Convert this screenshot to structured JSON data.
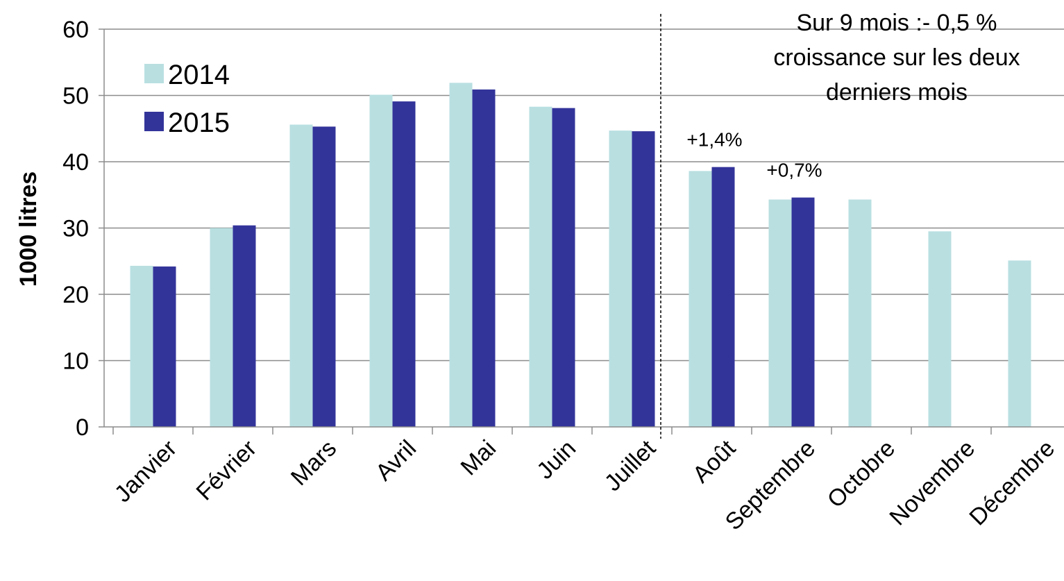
{
  "chart_data": {
    "type": "bar",
    "categories": [
      "Janvier",
      "Février",
      "Mars",
      "Avril",
      "Mai",
      "Juin",
      "Juillet",
      "Août",
      "Septembre",
      "Octobre",
      "Novembre",
      "Décembre"
    ],
    "series": [
      {
        "name": "2014",
        "color": "#b9dfe1",
        "values": [
          24.3,
          30.0,
          45.6,
          50.1,
          51.9,
          48.3,
          44.7,
          38.6,
          34.3,
          34.3,
          29.5,
          25.1
        ]
      },
      {
        "name": "2015",
        "color": "#33349a",
        "values": [
          24.2,
          30.4,
          45.3,
          49.1,
          50.9,
          48.1,
          44.6,
          39.2,
          34.6,
          null,
          null,
          null
        ]
      }
    ],
    "ylabel": "1000 litres",
    "xlabel": "",
    "ylim": [
      0,
      60
    ],
    "yticks": [
      0,
      10,
      20,
      30,
      40,
      50,
      60
    ],
    "grid": "horizontal",
    "legend_position": "top-left",
    "note_lines": [
      "Sur 9 mois :-  0,5 %",
      "croissance sur les deux",
      "derniers mois"
    ],
    "annotations": [
      {
        "category": "Août",
        "text": "+1,4%"
      },
      {
        "category": "Septembre",
        "text": "+0,7%"
      }
    ],
    "separator_after_category": "Juillet"
  }
}
